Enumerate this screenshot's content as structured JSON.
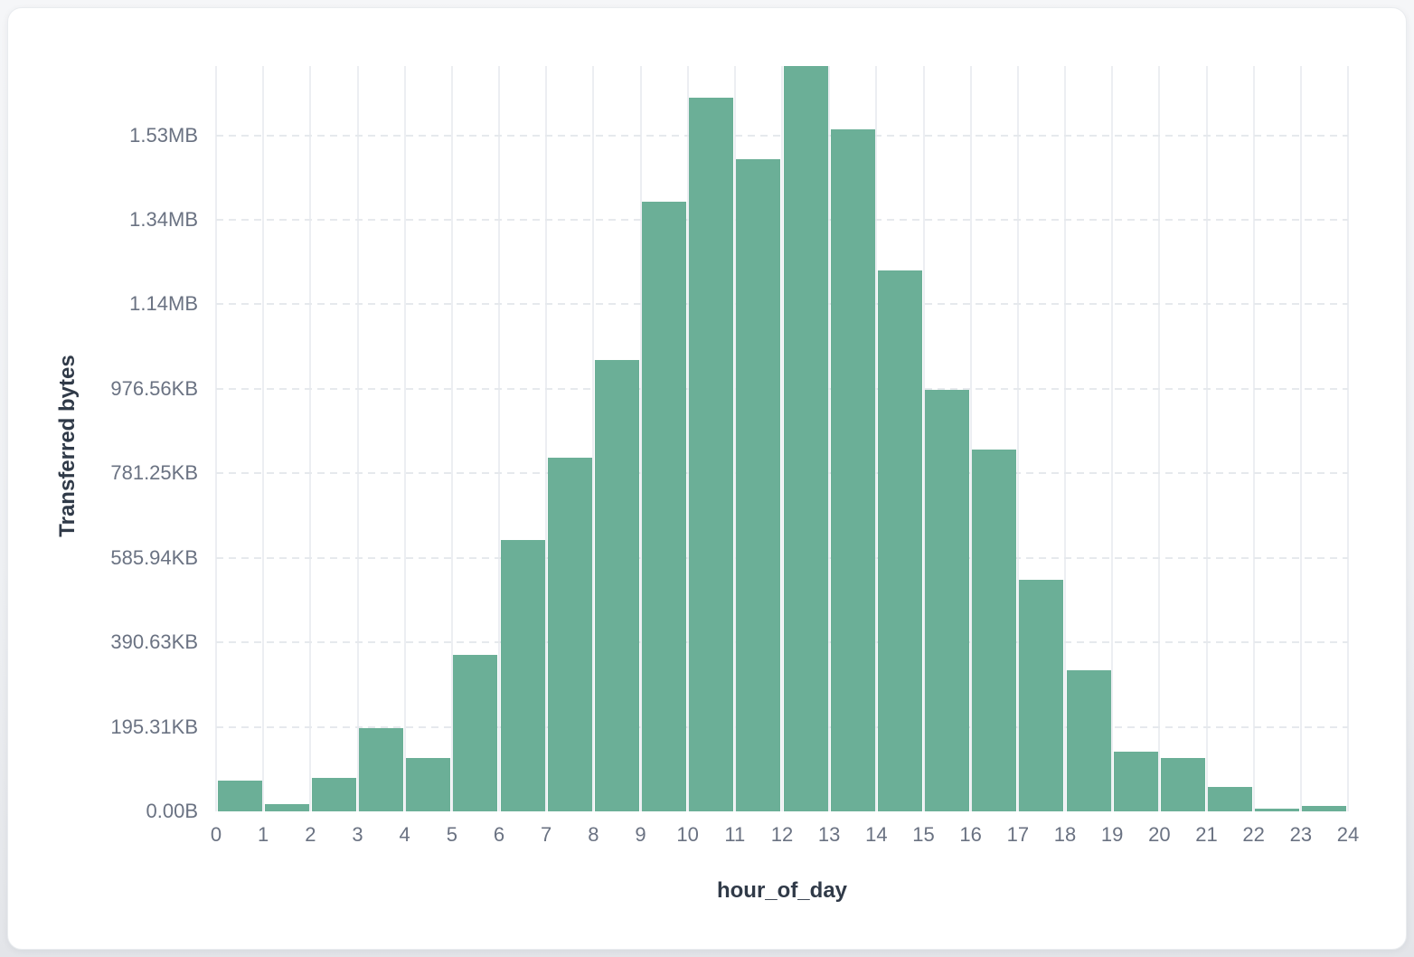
{
  "colors": {
    "page_background_top": "#f5f6f8",
    "page_background_bottom": "#e3e5e9",
    "card_background": "#ffffff",
    "gridline": "#eceef2",
    "tick_text": "#6a7282",
    "axis_title_text": "#303a48",
    "bar_fill": "#6baf97"
  },
  "chart_data": {
    "type": "bar",
    "title": "",
    "xlabel": "hour_of_day",
    "ylabel": "Transferred bytes",
    "x": [
      0,
      1,
      2,
      3,
      4,
      5,
      6,
      7,
      8,
      9,
      10,
      11,
      12,
      13,
      14,
      15,
      16,
      17,
      18,
      19,
      20,
      21,
      22,
      23
    ],
    "values_bytes": [
      73000,
      16500,
      78500,
      197000,
      126000,
      370000,
      642000,
      838000,
      1069000,
      1442000,
      1690000,
      1543000,
      1764000,
      1615000,
      1281000,
      997000,
      856000,
      549000,
      334000,
      141000,
      127000,
      57000,
      7000,
      13000
    ],
    "x_tick_labels": [
      "0",
      "1",
      "2",
      "3",
      "4",
      "5",
      "6",
      "7",
      "8",
      "9",
      "10",
      "11",
      "12",
      "13",
      "14",
      "15",
      "16",
      "17",
      "18",
      "19",
      "20",
      "21",
      "22",
      "23",
      "24"
    ],
    "y_tick_labels": [
      "0.00B",
      "195.31KB",
      "390.63KB",
      "585.94KB",
      "781.25KB",
      "976.56KB",
      "1.14MB",
      "1.34MB",
      "1.53MB"
    ],
    "y_tick_values_bytes": [
      0,
      200000,
      400000,
      600000,
      800000,
      1000000,
      1200000,
      1400000,
      1600000
    ],
    "ylim_bytes": [
      0,
      1764000
    ],
    "grid": true,
    "legend_position": "none",
    "bar_color": "#6baf97"
  }
}
